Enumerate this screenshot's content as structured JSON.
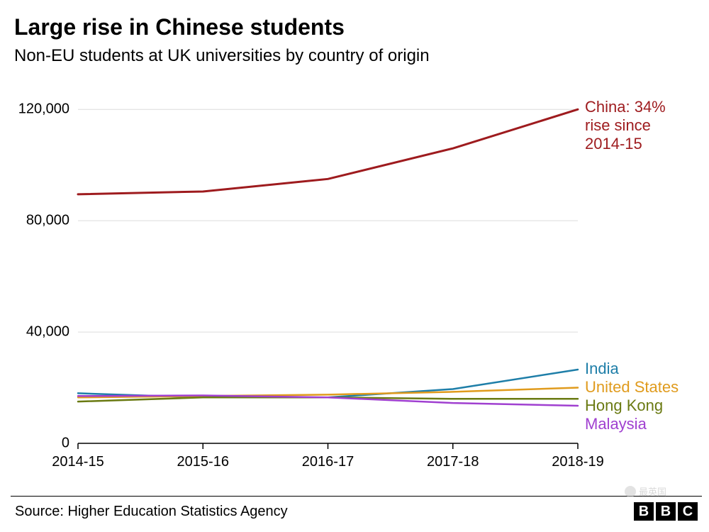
{
  "title": "Large rise in Chinese students",
  "subtitle": "Non-EU students at UK universities by country of origin",
  "source": "Source: Higher Education Statistics Agency",
  "brand": {
    "b1": "B",
    "b2": "B",
    "b3": "C"
  },
  "watermark": "最英国",
  "chart": {
    "type": "line",
    "background_color": "#ffffff",
    "plot_bg": "#ffffff",
    "axis_color": "#000000",
    "grid_color": "#dcdcdc",
    "tick_fontsize": 20,
    "label_fontsize": 22,
    "x": {
      "categories": [
        "2014-15",
        "2015-16",
        "2016-17",
        "2017-18",
        "2018-19"
      ]
    },
    "y": {
      "min": 0,
      "max": 130000,
      "ticks": [
        0,
        40000,
        80000,
        120000
      ],
      "tick_labels": [
        "0",
        "40,000",
        "80,000",
        "120,000"
      ]
    },
    "annotation": {
      "lines": [
        "China: 34%",
        "rise since",
        "2014-15"
      ],
      "color": "#9e1b1e",
      "fontsize": 22
    },
    "series": [
      {
        "name": "China",
        "label": "",
        "color": "#9e1b1e",
        "width": 3,
        "values": [
          89500,
          90500,
          95000,
          106000,
          120000
        ]
      },
      {
        "name": "India",
        "label": "India",
        "color": "#1e7ea8",
        "width": 2.5,
        "values": [
          18000,
          16500,
          16500,
          19500,
          26500
        ]
      },
      {
        "name": "United States",
        "label": "United States",
        "color": "#e09b1d",
        "width": 2.5,
        "values": [
          16500,
          17000,
          17500,
          18500,
          20000
        ]
      },
      {
        "name": "Hong Kong",
        "label": "Hong Kong",
        "color": "#6a7a12",
        "width": 2.5,
        "values": [
          15000,
          16500,
          16500,
          16000,
          16000
        ]
      },
      {
        "name": "Malaysia",
        "label": "Malaysia",
        "color": "#a040d0",
        "width": 2.5,
        "values": [
          17000,
          17200,
          16500,
          14500,
          13500
        ]
      }
    ]
  }
}
